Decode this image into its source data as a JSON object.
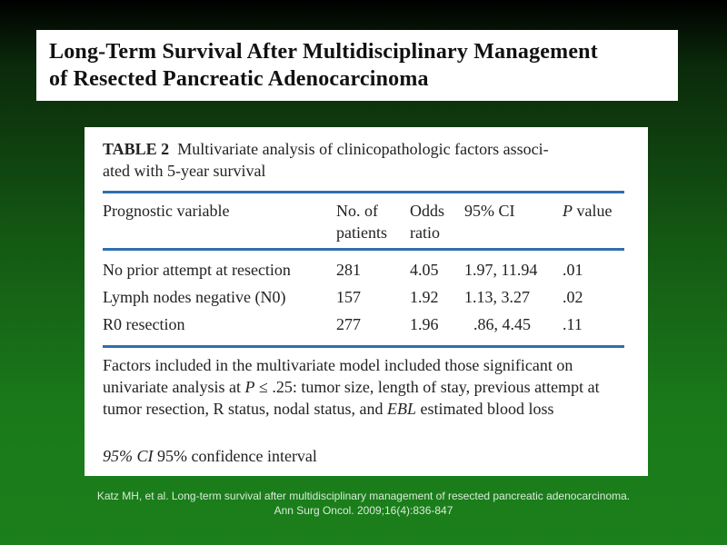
{
  "slide": {
    "title_line1": "Long-Term Survival After Multidisciplinary Management",
    "title_line2": "of Resected Pancreatic Adenocarcinoma"
  },
  "table": {
    "label": "TABLE 2",
    "caption_line1": "Multivariate analysis of clinicopathologic factors associ-",
    "caption_line2": "ated with 5-year survival",
    "columns": [
      {
        "line1": "Prognostic variable",
        "line2": ""
      },
      {
        "line1": "No. of",
        "line2": "patients"
      },
      {
        "line1": "Odds",
        "line2": "ratio"
      },
      {
        "line1": "95% CI",
        "line2": ""
      },
      {
        "line1_italic": "P",
        "line1": " value",
        "line2": ""
      }
    ],
    "rows": [
      {
        "variable": "No prior attempt at resection",
        "patients": "281",
        "odds_ratio": "4.05",
        "ci": "1.97, 11.94",
        "p": ".01"
      },
      {
        "variable": "Lymph nodes negative (N0)",
        "patients": "157",
        "odds_ratio": "1.92",
        "ci": "1.13, 3.27",
        "p": ".02"
      },
      {
        "variable": "R0 resection",
        "patients": "277",
        "odds_ratio": "1.96",
        "ci": ".86, 4.45",
        "p": ".11"
      }
    ],
    "footnote": {
      "part1": "Factors included in the multivariate model included those significant on univariate analysis at ",
      "p_symbol": "P",
      "part2": " ≤ .25: tumor size, length of stay, previous attempt at tumor resection, R status, nodal status, and ",
      "ebl": "EBL",
      "part3": " estimated blood loss"
    },
    "ci_note": {
      "abbr": "95% CI",
      "text": " 95% confidence interval"
    }
  },
  "citation": {
    "line1": "Katz MH, et al. Long-term survival after multidisciplinary management of resected pancreatic adenocarcinoma.",
    "line2": "Ann Surg Oncol. 2009;16(4):836-847"
  }
}
